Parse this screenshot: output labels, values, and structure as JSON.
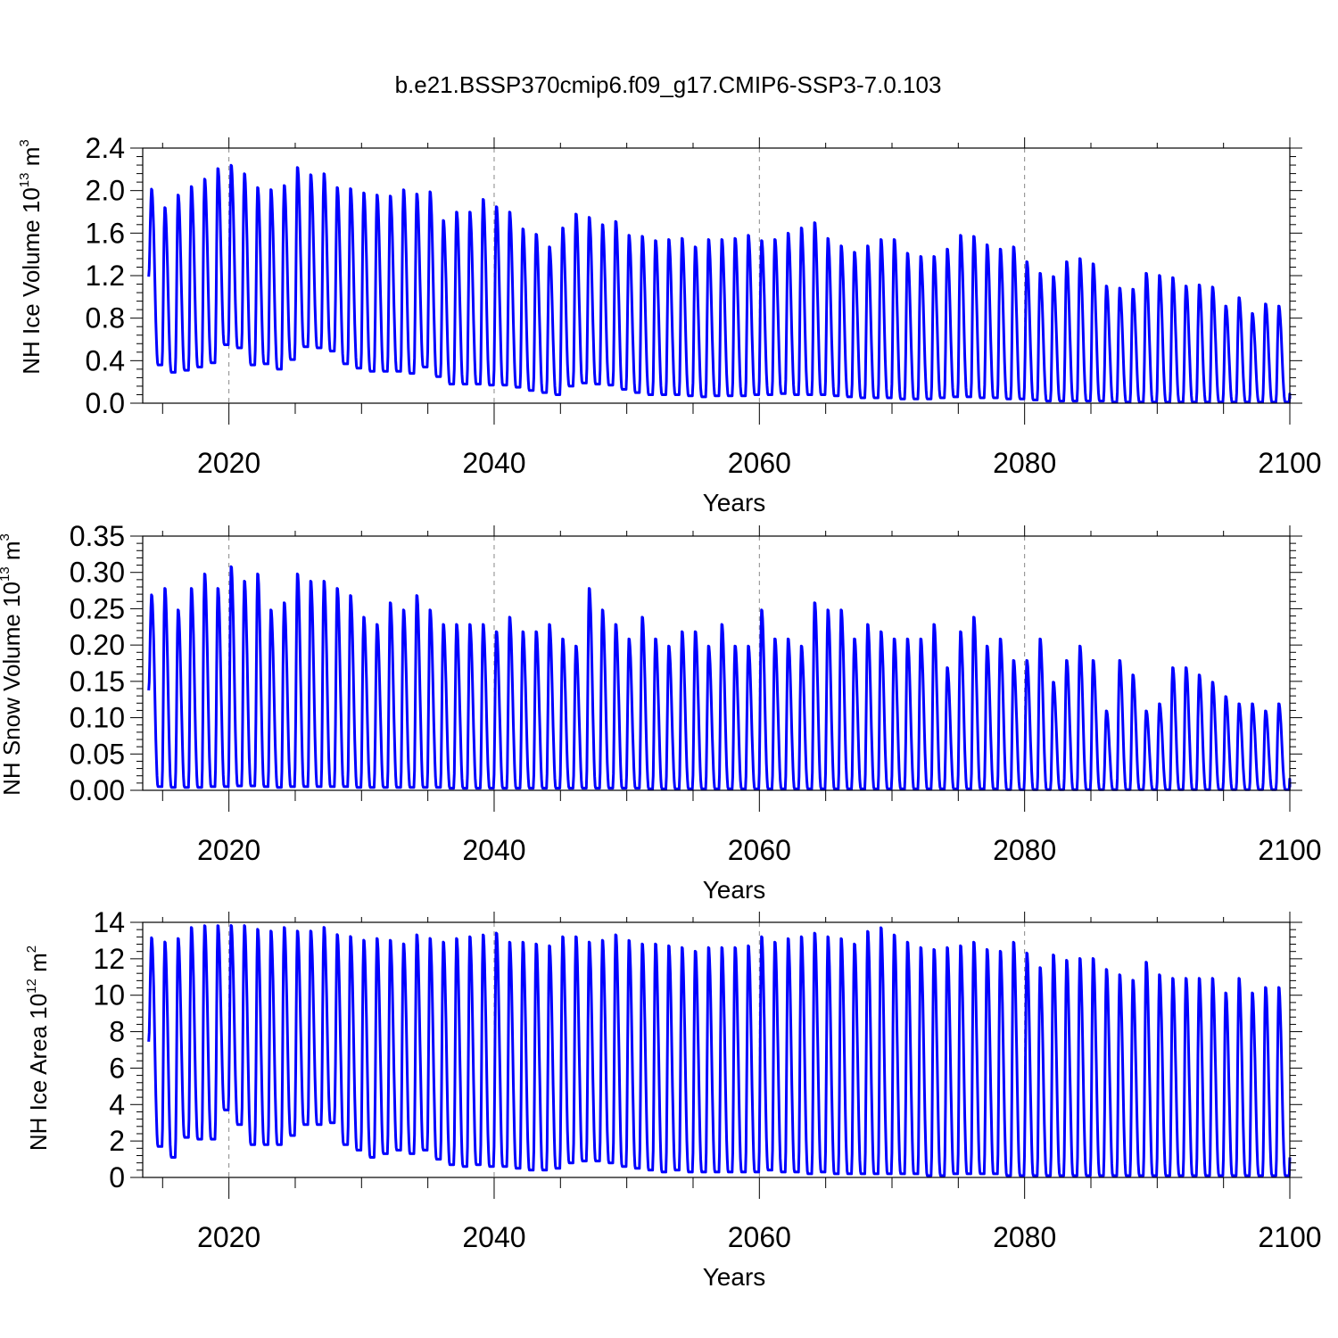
{
  "title": "b.e21.BSSP370cmip6.f09_g17.CMIP6-SSP3-7.0.103",
  "line_color": "#0000ff",
  "chart_data": [
    {
      "type": "line",
      "ylabel_base": "NH Ice Volume 10",
      "ylabel_exp": "13",
      "ylabel_unit": " m",
      "ylabel_unit_exp": "3",
      "xlabel": "Years",
      "xlim": [
        2013.5,
        2100
      ],
      "ylim": [
        0,
        2.4
      ],
      "x_ticks": [
        "2020",
        "2040",
        "2060",
        "2080",
        "2100"
      ],
      "y_ticks": [
        "0.0",
        "0.4",
        "0.8",
        "1.2",
        "1.6",
        "2.0",
        "2.4"
      ],
      "x_grid": "dashed at major ticks",
      "series": [
        {
          "start_year": 2014,
          "annual_max": [
            2.02,
            1.85,
            1.97,
            2.05,
            2.12,
            2.22,
            2.25,
            2.17,
            2.04,
            2.02,
            2.06,
            2.23,
            2.16,
            2.17,
            2.04,
            2.03,
            1.99,
            1.97,
            1.96,
            2.02,
            1.98,
            2.0,
            1.73,
            1.81,
            1.81,
            1.93,
            1.86,
            1.81,
            1.65,
            1.6,
            1.48,
            1.66,
            1.79,
            1.76,
            1.69,
            1.72,
            1.59,
            1.58,
            1.54,
            1.55,
            1.56,
            1.48,
            1.55,
            1.55,
            1.56,
            1.59,
            1.54,
            1.55,
            1.61,
            1.66,
            1.71,
            1.56,
            1.49,
            1.43,
            1.49,
            1.55,
            1.55,
            1.42,
            1.39,
            1.39,
            1.46,
            1.59,
            1.58,
            1.5,
            1.46,
            1.48,
            1.34,
            1.23,
            1.2,
            1.34,
            1.37,
            1.32,
            1.11,
            1.09,
            1.08,
            1.23,
            1.21,
            1.19,
            1.11,
            1.12,
            1.1,
            0.92,
            1.0,
            0.85,
            0.94,
            0.92,
            0.91
          ],
          "annual_min": [
            0.36,
            0.29,
            0.31,
            0.34,
            0.38,
            0.55,
            0.52,
            0.36,
            0.37,
            0.32,
            0.41,
            0.53,
            0.52,
            0.49,
            0.37,
            0.33,
            0.3,
            0.3,
            0.3,
            0.28,
            0.34,
            0.25,
            0.18,
            0.18,
            0.18,
            0.17,
            0.17,
            0.15,
            0.12,
            0.1,
            0.08,
            0.16,
            0.19,
            0.18,
            0.17,
            0.13,
            0.1,
            0.08,
            0.08,
            0.08,
            0.07,
            0.06,
            0.07,
            0.07,
            0.07,
            0.08,
            0.08,
            0.09,
            0.08,
            0.08,
            0.08,
            0.07,
            0.06,
            0.05,
            0.05,
            0.05,
            0.04,
            0.04,
            0.04,
            0.05,
            0.06,
            0.06,
            0.05,
            0.05,
            0.04,
            0.04,
            0.03,
            0.02,
            0.02,
            0.02,
            0.02,
            0.02,
            0.01,
            0.01,
            0.01,
            0.01,
            0.01,
            0.01,
            0.01,
            0.01,
            0.01,
            0.01,
            0.01,
            0.01,
            0.01,
            0.01,
            0.04
          ]
        }
      ]
    },
    {
      "type": "line",
      "ylabel_base": "NH Snow Volume 10",
      "ylabel_exp": "13",
      "ylabel_unit": " m",
      "ylabel_unit_exp": "3",
      "xlabel": "Years",
      "xlim": [
        2013.5,
        2100
      ],
      "ylim": [
        0,
        0.35
      ],
      "x_ticks": [
        "2020",
        "2040",
        "2060",
        "2080",
        "2100"
      ],
      "y_ticks": [
        "0.00",
        "0.05",
        "0.10",
        "0.15",
        "0.20",
        "0.25",
        "0.30",
        "0.35"
      ],
      "x_grid": "dashed at major ticks",
      "series": [
        {
          "start_year": 2014,
          "annual_max": [
            0.27,
            0.28,
            0.25,
            0.28,
            0.3,
            0.28,
            0.31,
            0.29,
            0.3,
            0.25,
            0.26,
            0.3,
            0.29,
            0.29,
            0.28,
            0.27,
            0.24,
            0.23,
            0.26,
            0.25,
            0.27,
            0.25,
            0.23,
            0.23,
            0.23,
            0.23,
            0.22,
            0.24,
            0.22,
            0.22,
            0.23,
            0.21,
            0.2,
            0.28,
            0.25,
            0.23,
            0.21,
            0.24,
            0.21,
            0.2,
            0.22,
            0.22,
            0.2,
            0.23,
            0.2,
            0.2,
            0.25,
            0.21,
            0.21,
            0.2,
            0.26,
            0.25,
            0.25,
            0.21,
            0.23,
            0.22,
            0.21,
            0.21,
            0.21,
            0.23,
            0.17,
            0.22,
            0.24,
            0.2,
            0.21,
            0.18,
            0.18,
            0.21,
            0.15,
            0.18,
            0.2,
            0.18,
            0.11,
            0.18,
            0.16,
            0.11,
            0.12,
            0.17,
            0.17,
            0.16,
            0.15,
            0.13,
            0.12,
            0.12,
            0.11,
            0.12,
            0.17
          ],
          "annual_min": [
            0.005,
            0.004,
            0.004,
            0.004,
            0.005,
            0.005,
            0.006,
            0.006,
            0.005,
            0.004,
            0.005,
            0.005,
            0.005,
            0.005,
            0.005,
            0.004,
            0.004,
            0.004,
            0.004,
            0.004,
            0.004,
            0.004,
            0.003,
            0.003,
            0.003,
            0.003,
            0.003,
            0.003,
            0.003,
            0.003,
            0.003,
            0.003,
            0.003,
            0.003,
            0.003,
            0.003,
            0.003,
            0.002,
            0.002,
            0.002,
            0.002,
            0.002,
            0.002,
            0.002,
            0.002,
            0.002,
            0.002,
            0.002,
            0.002,
            0.002,
            0.002,
            0.002,
            0.002,
            0.002,
            0.002,
            0.002,
            0.002,
            0.002,
            0.002,
            0.002,
            0.002,
            0.002,
            0.002,
            0.002,
            0.001,
            0.001,
            0.001,
            0.001,
            0.001,
            0.001,
            0.001,
            0.001,
            0.001,
            0.001,
            0.001,
            0.001,
            0.001,
            0.001,
            0.001,
            0.001,
            0.001,
            0.001,
            0.001,
            0.001,
            0.001,
            0.001,
            0.004
          ]
        }
      ]
    },
    {
      "type": "line",
      "ylabel_base": "NH Ice Area 10",
      "ylabel_exp": "12",
      "ylabel_unit": " m",
      "ylabel_unit_exp": "2",
      "xlabel": "Years",
      "xlim": [
        2013.5,
        2100
      ],
      "ylim": [
        0,
        14
      ],
      "x_ticks": [
        "2020",
        "2040",
        "2060",
        "2080",
        "2100"
      ],
      "y_ticks": [
        "0",
        "2",
        "4",
        "6",
        "8",
        "10",
        "12",
        "14"
      ],
      "x_grid": "dashed at major ticks",
      "series": [
        {
          "start_year": 2014,
          "annual_max": [
            13.2,
            13.0,
            13.2,
            13.8,
            13.9,
            13.9,
            13.9,
            13.9,
            13.7,
            13.6,
            13.8,
            13.6,
            13.6,
            13.8,
            13.4,
            13.3,
            13.1,
            13.2,
            13.1,
            12.9,
            13.4,
            13.2,
            13.0,
            13.2,
            13.3,
            13.4,
            13.5,
            13.0,
            13.0,
            12.9,
            12.8,
            13.3,
            13.3,
            13.0,
            13.1,
            13.4,
            13.1,
            12.9,
            12.9,
            12.8,
            12.7,
            12.5,
            12.7,
            12.7,
            12.7,
            12.8,
            13.3,
            13.0,
            13.2,
            13.3,
            13.5,
            13.3,
            13.2,
            12.9,
            13.6,
            13.8,
            13.4,
            13.0,
            12.7,
            12.6,
            12.7,
            12.8,
            13.0,
            12.6,
            12.5,
            13.0,
            12.4,
            11.6,
            12.3,
            12.0,
            12.1,
            12.1,
            11.5,
            11.2,
            10.9,
            11.9,
            11.2,
            11.0,
            11.0,
            11.0,
            11.0,
            10.2,
            11.0,
            10.2,
            10.5,
            10.5,
            10.4
          ],
          "annual_min": [
            1.7,
            1.1,
            2.2,
            2.1,
            2.1,
            3.7,
            2.9,
            1.8,
            1.8,
            1.8,
            2.3,
            2.9,
            2.9,
            3.0,
            1.8,
            1.5,
            1.1,
            1.3,
            1.5,
            1.3,
            1.5,
            1.0,
            0.7,
            0.6,
            0.7,
            0.6,
            0.6,
            0.5,
            0.4,
            0.4,
            0.5,
            0.8,
            0.9,
            0.9,
            0.8,
            0.6,
            0.5,
            0.4,
            0.3,
            0.4,
            0.3,
            0.3,
            0.3,
            0.3,
            0.3,
            0.3,
            0.4,
            0.3,
            0.3,
            0.2,
            0.3,
            0.2,
            0.2,
            0.2,
            0.2,
            0.2,
            0.2,
            0.2,
            0.1,
            0.1,
            0.2,
            0.2,
            0.2,
            0.2,
            0.1,
            0.1,
            0.1,
            0.1,
            0.1,
            0.1,
            0.1,
            0.1,
            0.1,
            0.1,
            0.1,
            0.1,
            0.1,
            0.1,
            0.1,
            0.1,
            0.1,
            0.1,
            0.1,
            0.1,
            0.1,
            0.1,
            1.1
          ]
        }
      ]
    }
  ]
}
